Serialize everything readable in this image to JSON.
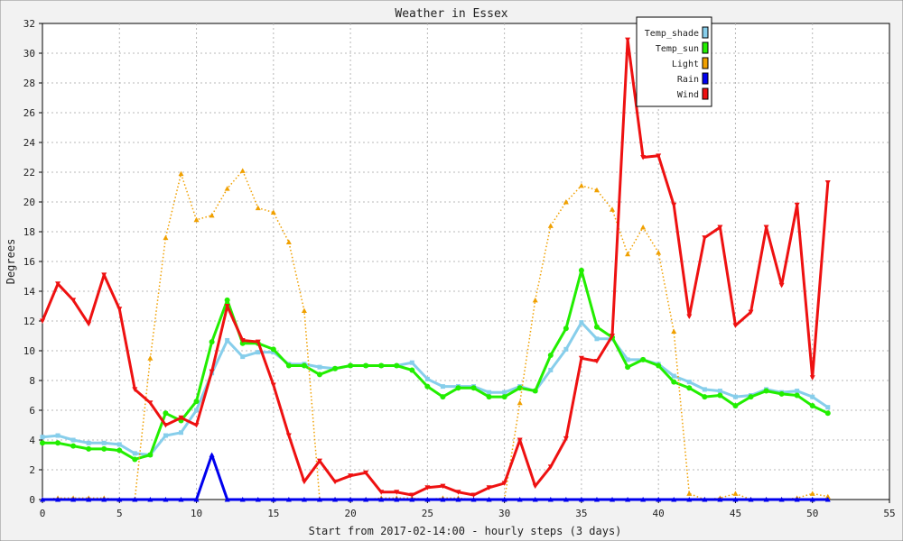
{
  "chart_data": {
    "type": "line",
    "title": "Weather in Essex",
    "xlabel": "Start from 2017-02-14:00 - hourly steps (3 days)",
    "ylabel": "Degrees",
    "xlim": [
      0,
      55
    ],
    "ylim": [
      0,
      32
    ],
    "x_ticks": [
      0,
      5,
      10,
      15,
      20,
      25,
      30,
      35,
      40,
      45,
      50,
      55
    ],
    "y_ticks": [
      0,
      2,
      4,
      6,
      8,
      10,
      12,
      14,
      16,
      18,
      20,
      22,
      24,
      26,
      28,
      30,
      32
    ],
    "grid": true,
    "legend_position": "top-right",
    "x": [
      0,
      1,
      2,
      3,
      4,
      5,
      6,
      7,
      8,
      9,
      10,
      11,
      12,
      13,
      14,
      15,
      16,
      17,
      18,
      19,
      20,
      21,
      22,
      23,
      24,
      25,
      26,
      27,
      28,
      29,
      30,
      31,
      32,
      33,
      34,
      35,
      36,
      37,
      38,
      39,
      40,
      41,
      42,
      43,
      44,
      45,
      46,
      47,
      48,
      49,
      50,
      51
    ],
    "series": [
      {
        "name": "Temp_shade",
        "color": "#87ceeb",
        "marker": "square",
        "dash": "solid",
        "values": [
          4.2,
          4.3,
          4.0,
          3.8,
          3.8,
          3.7,
          3.1,
          3.0,
          4.3,
          4.5,
          6.0,
          8.5,
          10.7,
          9.6,
          9.9,
          9.9,
          9.1,
          9.1,
          8.9,
          8.8,
          9.0,
          9.0,
          9.0,
          9.0,
          9.2,
          8.1,
          7.6,
          7.6,
          7.6,
          7.2,
          7.2,
          7.6,
          7.3,
          8.7,
          10.1,
          11.9,
          10.8,
          10.8,
          9.4,
          9.4,
          9.1,
          8.3,
          7.9,
          7.4,
          7.3,
          6.9,
          7.0,
          7.4,
          7.2,
          7.3,
          6.9,
          6.2
        ]
      },
      {
        "name": "Temp_sun",
        "color": "#22ee00",
        "marker": "circle",
        "dash": "solid",
        "values": [
          3.8,
          3.8,
          3.6,
          3.4,
          3.4,
          3.3,
          2.7,
          3.0,
          5.8,
          5.3,
          6.6,
          10.6,
          13.4,
          10.5,
          10.5,
          10.1,
          9.0,
          9.0,
          8.4,
          8.8,
          9.0,
          9.0,
          9.0,
          9.0,
          8.7,
          7.6,
          6.9,
          7.5,
          7.5,
          6.9,
          6.9,
          7.5,
          7.3,
          9.7,
          11.5,
          15.4,
          11.6,
          10.9,
          8.9,
          9.4,
          9.0,
          7.9,
          7.5,
          6.9,
          7.0,
          6.3,
          6.9,
          7.3,
          7.1,
          7.0,
          6.3,
          5.8
        ]
      },
      {
        "name": "Light",
        "color": "#f0a000",
        "marker": "triangle-up",
        "dash": "dotted",
        "values": [
          0,
          0.1,
          0.1,
          0.1,
          0.1,
          0,
          0,
          9.5,
          17.6,
          21.9,
          18.8,
          19.1,
          20.9,
          22.1,
          19.6,
          19.3,
          17.3,
          12.7,
          0,
          0,
          0,
          0,
          0.1,
          0.1,
          0.1,
          0,
          0.1,
          0.1,
          0,
          0,
          0,
          6.5,
          13.4,
          18.4,
          20.0,
          21.1,
          20.8,
          19.5,
          16.5,
          18.3,
          16.6,
          11.3,
          0.4,
          0,
          0.1,
          0.4,
          0,
          0,
          0,
          0.1,
          0.4,
          0.2
        ]
      },
      {
        "name": "Rain",
        "color": "#0000ee",
        "marker": "triangle-up",
        "dash": "solid",
        "values": [
          0,
          0,
          0,
          0,
          0,
          0,
          0,
          0,
          0,
          0,
          0,
          3.0,
          0,
          0,
          0,
          0,
          0,
          0,
          0,
          0,
          0,
          0,
          0,
          0,
          0,
          0,
          0,
          0,
          0,
          0,
          0,
          0,
          0,
          0,
          0,
          0,
          0,
          0,
          0,
          0,
          0,
          0,
          0,
          0,
          0,
          0,
          0,
          0,
          0,
          0,
          0,
          0
        ]
      },
      {
        "name": "Wind",
        "color": "#ee1111",
        "marker": "triangle-down",
        "dash": "solid",
        "values": [
          12.0,
          14.5,
          13.4,
          11.8,
          15.1,
          12.8,
          7.4,
          6.5,
          5.0,
          5.5,
          5.0,
          8.6,
          13.0,
          10.7,
          10.6,
          7.7,
          4.3,
          1.2,
          2.6,
          1.2,
          1.6,
          1.8,
          0.5,
          0.5,
          0.3,
          0.8,
          0.9,
          0.5,
          0.3,
          0.8,
          1.1,
          4.0,
          0.9,
          2.2,
          4.1,
          9.5,
          9.3,
          11.0,
          30.9,
          23.0,
          23.1,
          19.8,
          12.3,
          17.6,
          18.3,
          11.7,
          12.6,
          18.3,
          14.4,
          19.8,
          8.2,
          21.3
        ]
      }
    ]
  }
}
